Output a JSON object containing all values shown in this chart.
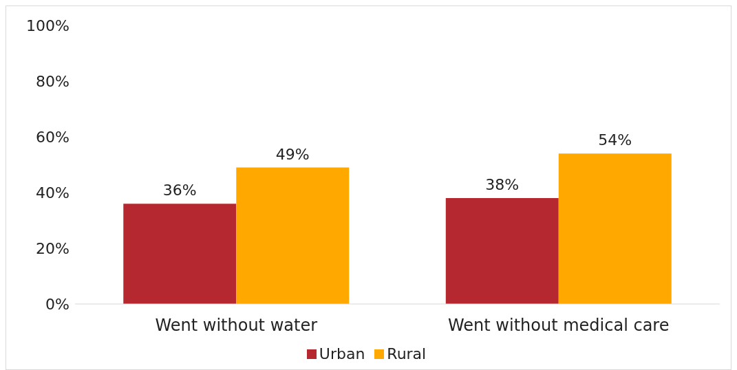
{
  "chart_data": {
    "type": "bar",
    "categories": [
      "Went without water",
      "Went without medical care"
    ],
    "series": [
      {
        "name": "Urban",
        "color": "#b5282f",
        "values": [
          36,
          38
        ],
        "value_labels": [
          "36%",
          "38%"
        ]
      },
      {
        "name": "Rural",
        "color": "#ffa800",
        "values": [
          49,
          54
        ],
        "value_labels": [
          "49%",
          "54%"
        ]
      }
    ],
    "ylim": [
      0,
      100
    ],
    "yticks": [
      {
        "value": 0,
        "label": "0%"
      },
      {
        "value": 20,
        "label": "20%"
      },
      {
        "value": 40,
        "label": "40%"
      },
      {
        "value": 60,
        "label": "60%"
      },
      {
        "value": 80,
        "label": "80%"
      },
      {
        "value": 100,
        "label": "100%"
      }
    ],
    "grid": false,
    "legend": "bottom"
  }
}
